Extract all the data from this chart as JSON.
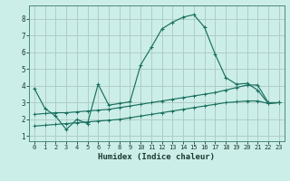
{
  "xlabel": "Humidex (Indice chaleur)",
  "background_color": "#cceee8",
  "grid_color": "#b0ccc8",
  "line_color": "#1a7060",
  "xlim": [
    -0.5,
    23.5
  ],
  "ylim": [
    0.7,
    8.8
  ],
  "xticks": [
    0,
    1,
    2,
    3,
    4,
    5,
    6,
    7,
    8,
    9,
    10,
    11,
    12,
    13,
    14,
    15,
    16,
    17,
    18,
    19,
    20,
    21,
    22,
    23
  ],
  "yticks": [
    1,
    2,
    3,
    4,
    5,
    6,
    7,
    8
  ],
  "curve1_x": [
    0,
    1,
    2,
    3,
    4,
    5,
    6,
    7,
    8,
    9,
    10,
    11,
    12,
    13,
    14,
    15,
    16,
    17,
    18,
    19,
    20,
    21,
    22,
    23
  ],
  "curve1_y": [
    3.85,
    2.65,
    2.2,
    1.4,
    2.0,
    1.75,
    4.1,
    2.85,
    2.95,
    3.05,
    5.25,
    6.3,
    7.4,
    7.8,
    8.1,
    8.25,
    7.5,
    5.9,
    4.5,
    4.1,
    4.15,
    3.75,
    2.95,
    3.0
  ],
  "curve2_x": [
    0,
    1,
    2,
    3,
    4,
    5,
    6,
    7,
    8,
    9,
    10,
    11,
    12,
    13,
    14,
    15,
    16,
    17,
    18,
    19,
    20,
    21,
    22,
    23
  ],
  "curve2_y": [
    2.3,
    2.35,
    2.4,
    2.4,
    2.45,
    2.5,
    2.55,
    2.6,
    2.7,
    2.8,
    2.9,
    3.0,
    3.1,
    3.2,
    3.3,
    3.4,
    3.5,
    3.6,
    3.75,
    3.9,
    4.05,
    4.05,
    3.0,
    3.0
  ],
  "curve3_x": [
    0,
    1,
    2,
    3,
    4,
    5,
    6,
    7,
    8,
    9,
    10,
    11,
    12,
    13,
    14,
    15,
    16,
    17,
    18,
    19,
    20,
    21,
    22,
    23
  ],
  "curve3_y": [
    1.6,
    1.65,
    1.7,
    1.75,
    1.8,
    1.85,
    1.9,
    1.95,
    2.0,
    2.1,
    2.2,
    2.3,
    2.4,
    2.5,
    2.6,
    2.7,
    2.8,
    2.9,
    3.0,
    3.05,
    3.1,
    3.1,
    2.95,
    3.0
  ],
  "xlabel_fontsize": 6.5,
  "tick_fontsize": 5.5
}
